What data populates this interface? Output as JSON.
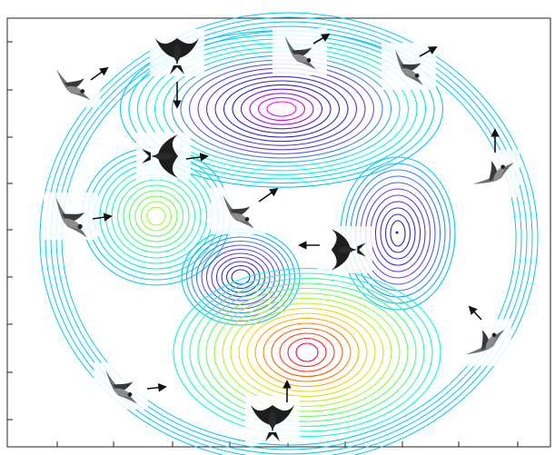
{
  "figure": {
    "kind": "contour-plot-with-bird-icons",
    "axes_frame": true,
    "tick_marks": {
      "left": 10,
      "bottom": 10,
      "labels_shown": false
    },
    "colormap": [
      "#00c8ff",
      "#00ffd0",
      "#40ff80",
      "#a0ff20",
      "#ffd000",
      "#ff6000",
      "#ff0040",
      "#ff00ff",
      "#6040ff",
      "#2020d0"
    ]
  },
  "contour_centers": [
    {
      "id": "top-peak",
      "type": "maximum",
      "color_center": "#ff00ff"
    },
    {
      "id": "left-peak",
      "type": "maximum",
      "color_center": "#a0ff20"
    },
    {
      "id": "right-well",
      "type": "minimum",
      "color_center": "#2020d0"
    },
    {
      "id": "middle-well",
      "type": "minimum",
      "color_center": "#2020d0"
    },
    {
      "id": "bottom-peak",
      "type": "maximum",
      "color_center": "#ff0040"
    }
  ],
  "birds": [
    {
      "id": "bird-top-left",
      "heading": "right-up"
    },
    {
      "id": "bird-top-swallow",
      "heading": "down"
    },
    {
      "id": "bird-top-center",
      "heading": "right-up"
    },
    {
      "id": "bird-top-right",
      "heading": "right-up"
    },
    {
      "id": "bird-right-upper",
      "heading": "up"
    },
    {
      "id": "bird-left-swallow",
      "heading": "right"
    },
    {
      "id": "bird-left",
      "heading": "right"
    },
    {
      "id": "bird-center",
      "heading": "right-up"
    },
    {
      "id": "bird-right-swallow",
      "heading": "left"
    },
    {
      "id": "bird-right-lower",
      "heading": "left-up"
    },
    {
      "id": "bird-bottom-left",
      "heading": "right"
    },
    {
      "id": "bird-bottom-swallow",
      "heading": "up"
    }
  ]
}
